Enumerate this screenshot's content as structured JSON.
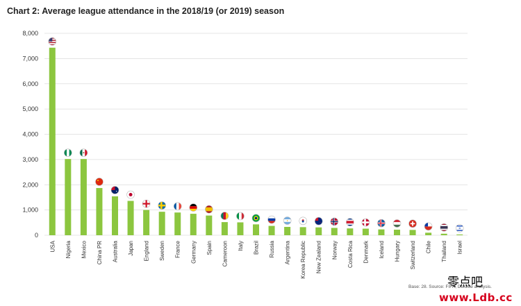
{
  "chart_data": {
    "type": "bar",
    "title": "Chart 2: Average league attendance in the 2018/19 (or 2019) season",
    "xlabel": "",
    "ylabel": "",
    "ylim": [
      0,
      8000
    ],
    "yticks": [
      0,
      1000,
      2000,
      3000,
      4000,
      5000,
      6000,
      7000,
      8000
    ],
    "ytick_labels": [
      "0",
      "1,000",
      "2,000",
      "3,000",
      "4,000",
      "5,000",
      "6,000",
      "7,000",
      "8,000"
    ],
    "grid": true,
    "bar_color": "#8cc63f",
    "categories": [
      "USA",
      "Nigeria",
      "Mexico",
      "China PR",
      "Australia",
      "Japan",
      "England",
      "Sweden",
      "France",
      "Germany",
      "Spain",
      "Cameroon",
      "Italy",
      "Brazil",
      "Russia",
      "Argentina",
      "Korea Republic",
      "New Zealand",
      "Norway",
      "Costa Rica",
      "Denmark",
      "Iceland",
      "Hungary",
      "Switzerland",
      "Chile",
      "Thailand",
      "Israel"
    ],
    "values": [
      7430,
      3020,
      3020,
      1870,
      1540,
      1360,
      1000,
      930,
      900,
      850,
      780,
      520,
      510,
      430,
      370,
      330,
      320,
      310,
      290,
      270,
      260,
      230,
      220,
      210,
      100,
      60,
      30
    ],
    "flags": [
      "usa-flag-icon",
      "nigeria-flag-icon",
      "mexico-flag-icon",
      "china-flag-icon",
      "australia-flag-icon",
      "japan-flag-icon",
      "england-flag-icon",
      "sweden-flag-icon",
      "france-flag-icon",
      "germany-flag-icon",
      "spain-flag-icon",
      "cameroon-flag-icon",
      "italy-flag-icon",
      "brazil-flag-icon",
      "russia-flag-icon",
      "argentina-flag-icon",
      "korea-flag-icon",
      "new-zealand-flag-icon",
      "norway-flag-icon",
      "costa-rica-flag-icon",
      "denmark-flag-icon",
      "iceland-flag-icon",
      "hungary-flag-icon",
      "switzerland-flag-icon",
      "chile-flag-icon",
      "thailand-flag-icon",
      "israel-flag-icon"
    ],
    "source": "Base: 28. Source: FIFA, Deloitte analysis."
  },
  "watermark": {
    "line1": "零点吧",
    "line2": "www.Ldb.cc"
  }
}
